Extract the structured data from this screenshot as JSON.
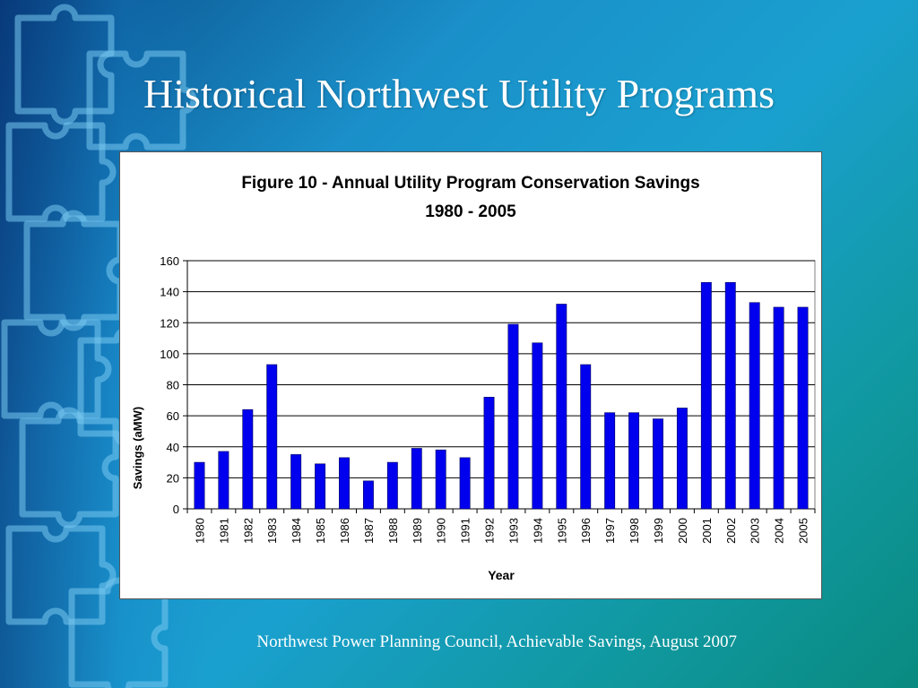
{
  "slide": {
    "title": "Historical Northwest Utility Programs",
    "footer": "Northwest Power Planning Council, Achievable Savings, August 2007"
  },
  "colors": {
    "bar": "#0000ee",
    "background_start": "#0a4f8a",
    "background_end": "#0a8a80",
    "title_text": "#ffffff"
  },
  "chart_data": {
    "type": "bar",
    "title": "Figure 10 - Annual Utility Program Conservation Savings",
    "subtitle": "1980 - 2005",
    "xlabel": "Year",
    "ylabel": "Savings (aMW)",
    "ylim": [
      0,
      160
    ],
    "yticks": [
      0,
      20,
      40,
      60,
      80,
      100,
      120,
      140,
      160
    ],
    "grid": true,
    "legend": "none",
    "categories": [
      "1980",
      "1981",
      "1982",
      "1983",
      "1984",
      "1985",
      "1986",
      "1987",
      "1988",
      "1989",
      "1990",
      "1991",
      "1992",
      "1993",
      "1994",
      "1995",
      "1996",
      "1997",
      "1998",
      "1999",
      "2000",
      "2001",
      "2002",
      "2003",
      "2004",
      "2005"
    ],
    "values": [
      30,
      37,
      64,
      93,
      35,
      29,
      33,
      18,
      30,
      39,
      38,
      33,
      72,
      119,
      107,
      132,
      93,
      62,
      62,
      58,
      65,
      146,
      146,
      133,
      130,
      130
    ]
  }
}
